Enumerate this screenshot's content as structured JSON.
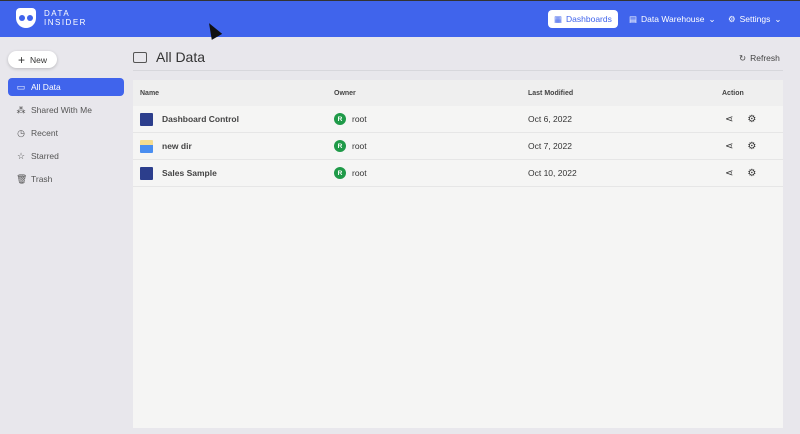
{
  "brand": {
    "line1": "DATA",
    "line2": "INSIDER"
  },
  "nav": [
    {
      "label": "Dashboards",
      "icon": "dashboard-icon",
      "active": true
    },
    {
      "label": "Data Warehouse",
      "icon": "database-icon"
    },
    {
      "label": "Settings",
      "icon": "gear-icon"
    }
  ],
  "sidebar": {
    "new_label": "New",
    "items": [
      {
        "label": "All Data",
        "icon": "folder-icon"
      },
      {
        "label": "Shared With Me",
        "icon": "share-icon"
      },
      {
        "label": "Recent",
        "icon": "clock-icon"
      },
      {
        "label": "Starred",
        "icon": "star-icon"
      },
      {
        "label": "Trash",
        "icon": "trash-icon"
      }
    ]
  },
  "page": {
    "title": "All Data",
    "refresh_label": "Refresh"
  },
  "table": {
    "columns": [
      "Name",
      "Owner",
      "Last Modified",
      "Action"
    ],
    "rows": [
      {
        "name": "Dashboard Control",
        "type": "dashboard",
        "owner": "root",
        "owner_initial": "R",
        "modified": "Oct 6, 2022"
      },
      {
        "name": "new dir",
        "type": "folder",
        "owner": "root",
        "owner_initial": "R",
        "modified": "Oct 7, 2022"
      },
      {
        "name": "Sales Sample",
        "type": "dashboard",
        "owner": "root",
        "owner_initial": "R",
        "modified": "Oct 10, 2022"
      }
    ]
  },
  "colors": {
    "primary": "#4064ec",
    "owner_avatar": "#1f9a48"
  }
}
